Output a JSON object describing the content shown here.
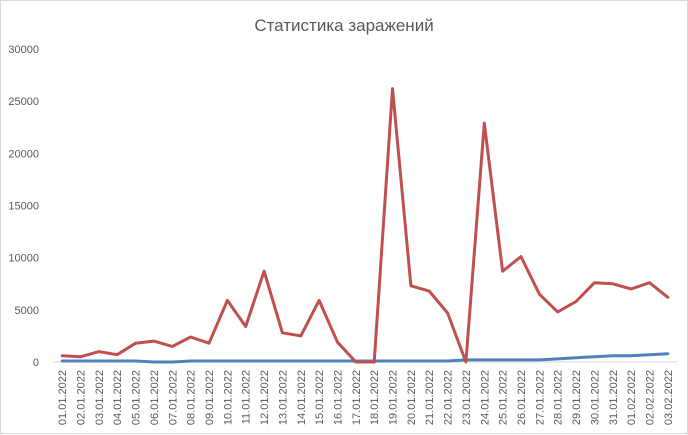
{
  "chart_data": {
    "type": "line",
    "title": "Статистика заражений",
    "xlabel": "",
    "ylabel": "",
    "ylim": [
      0,
      30000
    ],
    "yticks": [
      0,
      5000,
      10000,
      15000,
      20000,
      25000,
      30000
    ],
    "grid": false,
    "legend": "none",
    "categories": [
      "01.01.2022",
      "02.01.2022",
      "03.01.2022",
      "04.01.2022",
      "05.01.2022",
      "06.01.2022",
      "07.01.2022",
      "08.01.2022",
      "09.01.2022",
      "10.01.2022",
      "11.01.2022",
      "12.01.2022",
      "13.01.2022",
      "14.01.2022",
      "15.01.2022",
      "16.01.2022",
      "17.01.2022",
      "18.01.2022",
      "19.01.2022",
      "20.01.2022",
      "21.01.2022",
      "22.01.2022",
      "23.01.2022",
      "24.01.2022",
      "25.01.2022",
      "26.01.2022",
      "27.01.2022",
      "28.01.2022",
      "29.01.2022",
      "30.01.2022",
      "31.01.2022",
      "01.02.2022",
      "02.02.2022",
      "03.02.2022"
    ],
    "series": [
      {
        "color": "#4f81bd",
        "values": [
          100,
          100,
          100,
          100,
          100,
          0,
          0,
          100,
          100,
          100,
          100,
          100,
          100,
          100,
          100,
          100,
          100,
          100,
          100,
          100,
          100,
          100,
          200,
          200,
          200,
          200,
          200,
          300,
          400,
          500,
          600,
          600,
          700,
          800
        ]
      },
      {
        "color": "#c0504d",
        "values": [
          600,
          500,
          1000,
          700,
          1800,
          2000,
          1500,
          2400,
          1800,
          5900,
          3400,
          8700,
          2800,
          2500,
          5900,
          1900,
          0,
          0,
          26200,
          7300,
          6800,
          4700,
          0,
          22900,
          8700,
          10100,
          6500,
          4800,
          5800,
          7600,
          7500,
          7000,
          7600,
          6200
        ]
      }
    ]
  }
}
